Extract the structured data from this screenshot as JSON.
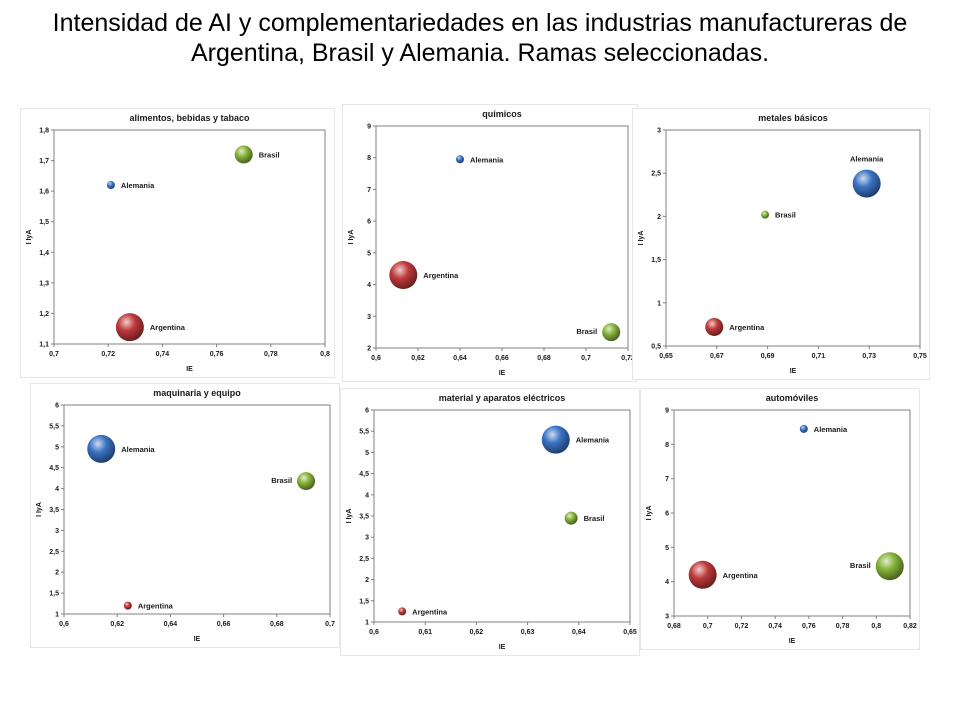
{
  "title": "Intensidad de AI y complementariedades en las industrias manufactureras de Argentina, Brasil y Alemania. Ramas seleccionadas.",
  "colors": {
    "Alemania": "#3a73c4",
    "Brasil": "#86b33a",
    "Argentina": "#c0393b"
  },
  "chart_data": [
    {
      "type": "scatter",
      "title": "alimentos, bebidas y tabaco",
      "xlabel": "IE",
      "ylabel": "I IyA",
      "xlim": [
        0.7,
        0.8
      ],
      "ylim": [
        1.1,
        1.8
      ],
      "xticks": [
        "0,7",
        "0,72",
        "0,74",
        "0,76",
        "0,78",
        "0,8"
      ],
      "yticks": [
        "1,1",
        "1,2",
        "1,3",
        "1,4",
        "1,5",
        "1,6",
        "1,7",
        "1,8"
      ],
      "points": [
        {
          "name": "Brasil",
          "x": 0.77,
          "y": 1.72,
          "size": 2
        },
        {
          "name": "Alemania",
          "x": 0.721,
          "y": 1.62,
          "size": 1
        },
        {
          "name": "Argentina",
          "x": 0.728,
          "y": 1.155,
          "size": 3
        }
      ]
    },
    {
      "type": "scatter",
      "title": "químicos",
      "xlabel": "IE",
      "ylabel": "I IyA",
      "xlim": [
        0.6,
        0.72
      ],
      "ylim": [
        2,
        9
      ],
      "xticks": [
        "0,6",
        "0,62",
        "0,64",
        "0,66",
        "0,68",
        "0,7",
        "0,72"
      ],
      "yticks": [
        "2",
        "3",
        "4",
        "5",
        "6",
        "7",
        "8",
        "9"
      ],
      "points": [
        {
          "name": "Alemania",
          "x": 0.64,
          "y": 7.95,
          "size": 1
        },
        {
          "name": "Argentina",
          "x": 0.613,
          "y": 4.3,
          "size": 3
        },
        {
          "name": "Brasil",
          "x": 0.712,
          "y": 2.5,
          "size": 2
        }
      ]
    },
    {
      "type": "scatter",
      "title": "metales básicos",
      "xlabel": "IE",
      "ylabel": "I IyA",
      "xlim": [
        0.65,
        0.75
      ],
      "ylim": [
        0.5,
        3
      ],
      "xticks": [
        "0,65",
        "0,67",
        "0,69",
        "0,71",
        "0,73",
        "0,75"
      ],
      "yticks": [
        "0,5",
        "1",
        "1,5",
        "2",
        "2,5",
        "3"
      ],
      "points": [
        {
          "name": "Alemania",
          "x": 0.729,
          "y": 2.38,
          "size": 3
        },
        {
          "name": "Brasil",
          "x": 0.689,
          "y": 2.02,
          "size": 1
        },
        {
          "name": "Argentina",
          "x": 0.669,
          "y": 0.72,
          "size": 2
        }
      ]
    },
    {
      "type": "scatter",
      "title": "maquinaria y equipo",
      "xlabel": "IE",
      "ylabel": "I IyA",
      "xlim": [
        0.6,
        0.7
      ],
      "ylim": [
        1,
        6
      ],
      "xticks": [
        "0,6",
        "0,62",
        "0,64",
        "0,66",
        "0,68",
        "0,7"
      ],
      "yticks": [
        "1",
        "1,5",
        "2",
        "2,5",
        "3",
        "3,5",
        "4",
        "4,5",
        "5",
        "5,5",
        "6"
      ],
      "points": [
        {
          "name": "Alemania",
          "x": 0.614,
          "y": 4.95,
          "size": 3
        },
        {
          "name": "Brasil",
          "x": 0.691,
          "y": 4.18,
          "size": 2
        },
        {
          "name": "Argentina",
          "x": 0.624,
          "y": 1.2,
          "size": 1
        }
      ]
    },
    {
      "type": "scatter",
      "title": "material y aparatos eléctricos",
      "xlabel": "IE",
      "ylabel": "I IyA",
      "xlim": [
        0.6,
        0.65
      ],
      "ylim": [
        1,
        6
      ],
      "xticks": [
        "0,6",
        "0,61",
        "0,62",
        "0,63",
        "0,64",
        "0,65"
      ],
      "yticks": [
        "1",
        "1,5",
        "2",
        "2,5",
        "3",
        "3,5",
        "4",
        "4,5",
        "5",
        "5,5",
        "6"
      ],
      "points": [
        {
          "name": "Alemania",
          "x": 0.6355,
          "y": 5.3,
          "size": 3
        },
        {
          "name": "Brasil",
          "x": 0.6385,
          "y": 3.45,
          "size": 1.5
        },
        {
          "name": "Argentina",
          "x": 0.6055,
          "y": 1.25,
          "size": 1
        }
      ]
    },
    {
      "type": "scatter",
      "title": "automóviles",
      "xlabel": "IE",
      "ylabel": "I IyA",
      "xlim": [
        0.68,
        0.82
      ],
      "ylim": [
        3,
        9
      ],
      "xticks": [
        "0,68",
        "0,7",
        "0,72",
        "0,74",
        "0,76",
        "0,78",
        "0,8",
        "0,82"
      ],
      "yticks": [
        "3",
        "4",
        "5",
        "6",
        "7",
        "8",
        "9"
      ],
      "points": [
        {
          "name": "Alemania",
          "x": 0.757,
          "y": 8.45,
          "size": 1
        },
        {
          "name": "Brasil",
          "x": 0.808,
          "y": 4.45,
          "size": 3
        },
        {
          "name": "Argentina",
          "x": 0.697,
          "y": 4.2,
          "size": 3
        }
      ]
    }
  ]
}
